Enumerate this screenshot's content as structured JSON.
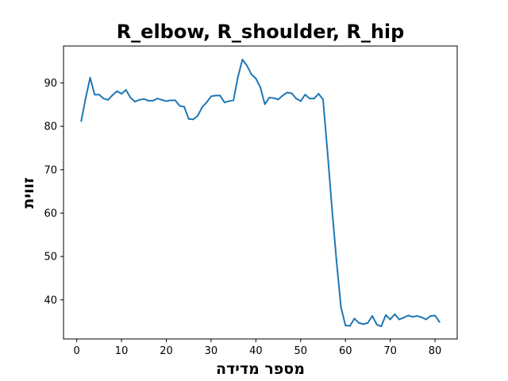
{
  "chart_data": {
    "type": "line",
    "title": "R_elbow, R_shoulder, R_hip",
    "xlabel": "מספר מדידה",
    "ylabel": "זווית",
    "xlim": [
      -2.95,
      84.95
    ],
    "ylim": [
      31.0,
      98.5
    ],
    "xticks": [
      0,
      10,
      20,
      30,
      40,
      50,
      60,
      70,
      80
    ],
    "yticks": [
      40,
      50,
      60,
      70,
      80,
      90
    ],
    "grid": false,
    "series": [
      {
        "color": "#1f77b4",
        "x": [
          1,
          2,
          3,
          4,
          5,
          6,
          7,
          8,
          9,
          10,
          11,
          12,
          13,
          14,
          15,
          16,
          17,
          18,
          19,
          20,
          21,
          22,
          23,
          24,
          25,
          26,
          27,
          28,
          29,
          30,
          31,
          32,
          33,
          34,
          35,
          36,
          37,
          38,
          39,
          40,
          41,
          42,
          43,
          44,
          45,
          46,
          47,
          48,
          49,
          50,
          51,
          52,
          53,
          54,
          55,
          56,
          57,
          58,
          59,
          60,
          61,
          62,
          63,
          64,
          65,
          66,
          67,
          68,
          69,
          70,
          71,
          72,
          73,
          74,
          75,
          76,
          77,
          78,
          79,
          80,
          81
        ],
        "values": [
          81.2,
          86.5,
          91.2,
          87.3,
          87.3,
          86.4,
          86.1,
          87.2,
          88.1,
          87.5,
          88.4,
          86.6,
          85.7,
          86.1,
          86.3,
          85.9,
          85.9,
          86.4,
          86.1,
          85.8,
          86.0,
          86.0,
          84.7,
          84.5,
          81.7,
          81.6,
          82.4,
          84.4,
          85.5,
          86.9,
          87.1,
          87.1,
          85.5,
          85.8,
          86.0,
          91.4,
          95.4,
          94.0,
          92.0,
          91.0,
          89.0,
          85.1,
          86.6,
          86.5,
          86.2,
          87.1,
          87.8,
          87.6,
          86.4,
          85.8,
          87.3,
          86.4,
          86.4,
          87.5,
          86.2,
          74.0,
          61.0,
          49.0,
          38.3,
          34.1,
          34.0,
          35.7,
          34.7,
          34.4,
          34.7,
          36.3,
          34.3,
          33.9,
          36.5,
          35.5,
          36.7,
          35.5,
          35.9,
          36.4,
          36.1,
          36.3,
          36.0,
          35.5,
          36.3,
          36.4,
          34.9
        ]
      }
    ]
  }
}
